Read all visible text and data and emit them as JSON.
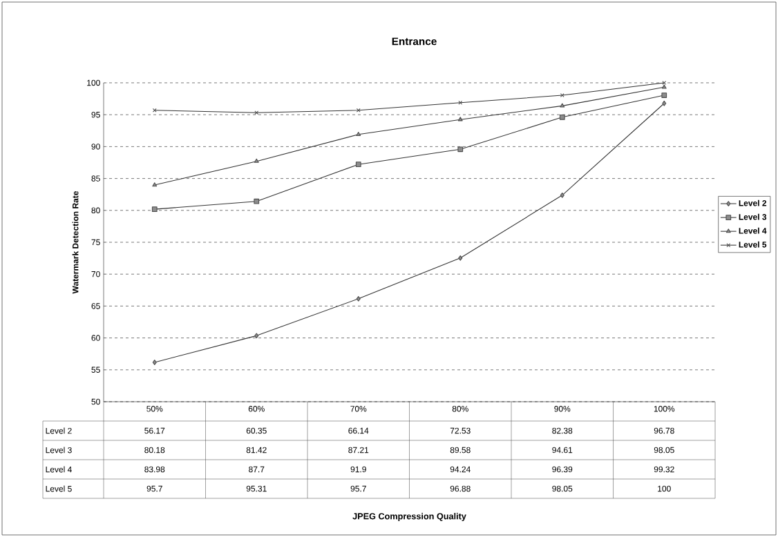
{
  "chart_data": {
    "type": "line",
    "title": "Entrance",
    "annotations": [
      "JPEG Compression Quality"
    ],
    "ylabel": "Watermark Detection Rate",
    "categories": [
      "50%",
      "60%",
      "70%",
      "80%",
      "90%",
      "100%"
    ],
    "series": [
      {
        "name": "Level 2",
        "color": "#333333",
        "marker": "diamond",
        "values": [
          56.17,
          60.35,
          66.14,
          72.53,
          82.38,
          96.78
        ],
        "value_labels": [
          "56.17",
          "60.35",
          "66.14",
          "72.53",
          "82.38",
          "96.78"
        ]
      },
      {
        "name": "Level 3",
        "color": "#333333",
        "marker": "square",
        "values": [
          80.18,
          81.42,
          87.21,
          89.58,
          94.61,
          98.05
        ],
        "value_labels": [
          "80.18",
          "81.42",
          "87.21",
          "89.58",
          "94.61",
          "98.05"
        ]
      },
      {
        "name": "Level 4",
        "color": "#333333",
        "marker": "triangle",
        "values": [
          83.98,
          87.7,
          91.9,
          94.24,
          96.39,
          99.32
        ],
        "value_labels": [
          "83.98",
          "87.7",
          "91.9",
          "94.24",
          "96.39",
          "99.32"
        ]
      },
      {
        "name": "Level 5",
        "color": "#333333",
        "marker": "cross",
        "values": [
          95.7,
          95.31,
          95.7,
          96.88,
          98.05,
          100
        ],
        "value_labels": [
          "95.7",
          "95.31",
          "95.7",
          "96.88",
          "98.05",
          "100"
        ]
      }
    ],
    "ylim": [
      50,
      100
    ],
    "yticks": [
      50,
      55,
      60,
      65,
      70,
      75,
      80,
      85,
      90,
      95,
      100
    ],
    "grid": "y",
    "legend": "right"
  }
}
